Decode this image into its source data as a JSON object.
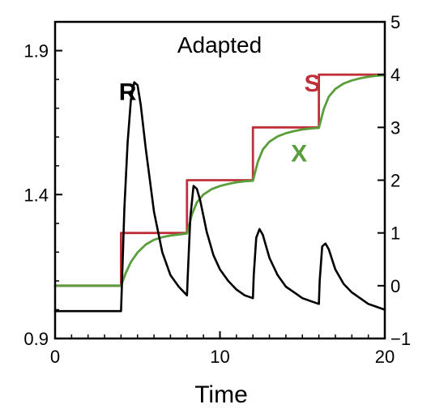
{
  "chart_data": {
    "type": "line",
    "title": "Adapted",
    "xlabel": "Time",
    "xlim": [
      0,
      20
    ],
    "x_ticks": [
      "0",
      "10",
      "20"
    ],
    "y_left": {
      "lim": [
        0.9,
        2.0
      ],
      "ticks": [
        "0.9",
        "1.4",
        "1.9"
      ]
    },
    "y_right": {
      "lim": [
        -1,
        5
      ],
      "ticks": [
        "−1",
        "0",
        "1",
        "2",
        "3",
        "4",
        "5"
      ]
    },
    "grid": false,
    "series": [
      {
        "name": "R",
        "color": "#000000",
        "axis": "left",
        "x": [
          0,
          4,
          4.05,
          4.2,
          4.4,
          4.6,
          4.8,
          5.0,
          5.2,
          5.5,
          6.0,
          6.5,
          7.0,
          7.5,
          8.0,
          8.05,
          8.2,
          8.4,
          8.6,
          8.8,
          9.2,
          9.6,
          10.0,
          10.5,
          11.0,
          11.5,
          12.0,
          12.05,
          12.2,
          12.4,
          12.6,
          13.0,
          13.5,
          14.0,
          14.5,
          15.0,
          15.5,
          16.0,
          16.05,
          16.2,
          16.4,
          16.6,
          17.0,
          17.5,
          18.0,
          18.5,
          19.0,
          19.5,
          20.0
        ],
        "y": [
          0.995,
          0.995,
          1.08,
          1.35,
          1.58,
          1.73,
          1.79,
          1.78,
          1.71,
          1.56,
          1.34,
          1.2,
          1.12,
          1.08,
          1.05,
          1.12,
          1.32,
          1.43,
          1.42,
          1.38,
          1.27,
          1.19,
          1.14,
          1.1,
          1.07,
          1.05,
          1.04,
          1.12,
          1.25,
          1.28,
          1.26,
          1.18,
          1.12,
          1.08,
          1.06,
          1.04,
          1.03,
          1.02,
          1.1,
          1.22,
          1.23,
          1.21,
          1.14,
          1.09,
          1.06,
          1.04,
          1.02,
          1.01,
          1.0
        ]
      },
      {
        "name": "S",
        "color": "#c0303a",
        "axis": "right",
        "x": [
          0,
          4,
          4,
          8,
          8,
          12,
          12,
          16,
          16,
          20
        ],
        "y": [
          0,
          0,
          1,
          1,
          2,
          2,
          3,
          3,
          4,
          4
        ]
      },
      {
        "name": "X",
        "color": "#5a9e3c",
        "axis": "right",
        "x": [
          0,
          4,
          4.3,
          4.6,
          5.0,
          5.5,
          6.0,
          6.5,
          7.0,
          7.5,
          8.0,
          8.3,
          8.6,
          9.0,
          9.5,
          10.0,
          10.5,
          11.0,
          11.5,
          12.0,
          12.3,
          12.6,
          13.0,
          13.5,
          14.0,
          14.5,
          15.0,
          15.5,
          16.0,
          16.3,
          16.6,
          17.0,
          17.5,
          18.0,
          18.5,
          19.0,
          19.5,
          20.0
        ],
        "y": [
          0,
          0,
          0.25,
          0.45,
          0.63,
          0.78,
          0.87,
          0.92,
          0.95,
          0.97,
          0.99,
          1.35,
          1.58,
          1.73,
          1.83,
          1.89,
          1.93,
          1.96,
          1.98,
          1.99,
          2.35,
          2.58,
          2.73,
          2.83,
          2.89,
          2.93,
          2.96,
          2.98,
          2.99,
          3.35,
          3.58,
          3.73,
          3.83,
          3.89,
          3.93,
          3.96,
          3.98,
          3.99
        ]
      }
    ],
    "annotations": [
      {
        "text": "R",
        "color": "#000000",
        "x": 4.4,
        "y_right": 3.52
      },
      {
        "text": "S",
        "color": "#c0303a",
        "x": 15.6,
        "y_right": 3.68
      },
      {
        "text": "X",
        "color": "#5a9e3c",
        "x": 14.8,
        "y_right": 2.35
      }
    ]
  }
}
